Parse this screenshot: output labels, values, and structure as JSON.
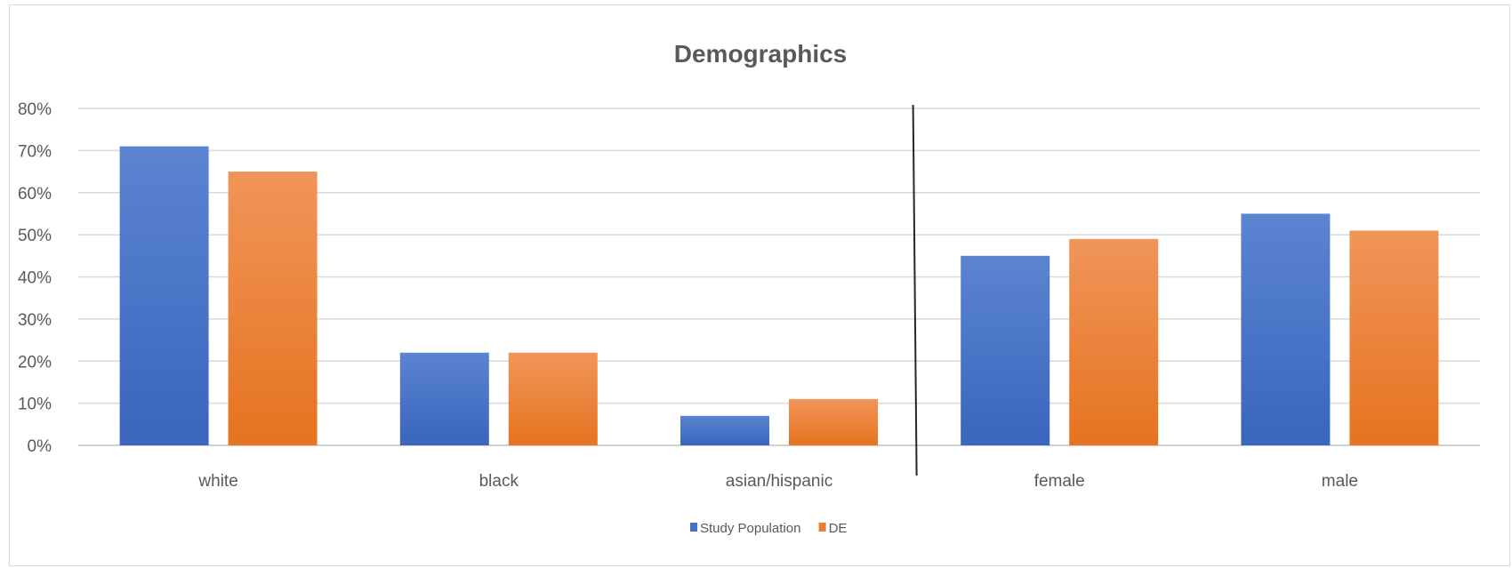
{
  "chart_data": {
    "type": "bar",
    "title": "Demographics",
    "xlabel": "",
    "ylabel": "",
    "categories": [
      "white",
      "black",
      "asian/hispanic",
      "female",
      "male"
    ],
    "series": [
      {
        "name": "Study Population",
        "color": "#4472C4",
        "values": [
          71,
          22,
          7,
          45,
          55
        ]
      },
      {
        "name": "DE",
        "color": "#ED7D31",
        "values": [
          65,
          22,
          11,
          49,
          51
        ]
      }
    ],
    "ylim": [
      0,
      80
    ],
    "yticks": [
      "0%",
      "10%",
      "20%",
      "30%",
      "40%",
      "50%",
      "60%",
      "70%",
      "80%"
    ],
    "grid": true,
    "legend_position": "bottom",
    "divider_after_category": "asian/hispanic"
  }
}
